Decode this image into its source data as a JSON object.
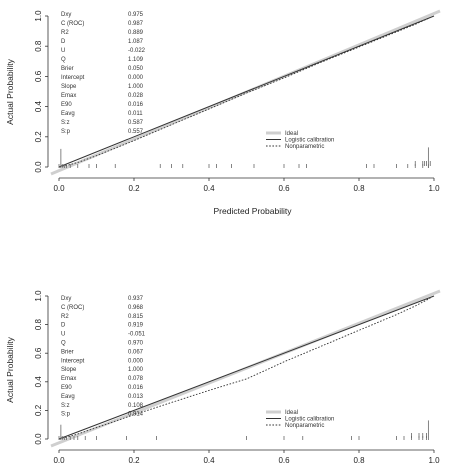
{
  "chart_data": [
    {
      "type": "line",
      "title": "",
      "xlabel": "Predicted Probability",
      "ylabel": "Actual Probability",
      "xlim": [
        0,
        1
      ],
      "ylim": [
        0,
        1
      ],
      "x_ticks": [
        "0.0",
        "0.2",
        "0.4",
        "0.6",
        "0.8",
        "1.0"
      ],
      "y_ticks": [
        "0.0",
        "0.2",
        "0.4",
        "0.6",
        "0.8",
        "1.0"
      ],
      "stats": [
        {
          "label": "Dxy",
          "value": "0.975"
        },
        {
          "label": "C (ROC)",
          "value": "0.987"
        },
        {
          "label": "R2",
          "value": "0.889"
        },
        {
          "label": "D",
          "value": "1.087"
        },
        {
          "label": "U",
          "value": "-0.022"
        },
        {
          "label": "Q",
          "value": "1.109"
        },
        {
          "label": "Brier",
          "value": "0.050"
        },
        {
          "label": "Intercept",
          "value": "0.000"
        },
        {
          "label": "Slope",
          "value": "1.000"
        },
        {
          "label": "Emax",
          "value": "0.028"
        },
        {
          "label": "E90",
          "value": "0.016"
        },
        {
          "label": "Eavg",
          "value": "0.011"
        },
        {
          "label": "S:z",
          "value": "0.587"
        },
        {
          "label": "S:p",
          "value": "0.557"
        }
      ],
      "legend": {
        "position": "right",
        "entries": [
          "Ideal",
          "Logistic calibration",
          "Nonparametric"
        ]
      },
      "series": [
        {
          "name": "Ideal",
          "x": [
            0,
            1
          ],
          "y": [
            0,
            1
          ]
        },
        {
          "name": "Logistic calibration",
          "x": [
            0,
            1
          ],
          "y": [
            0,
            1
          ]
        },
        {
          "name": "Nonparametric",
          "x": [
            0.0,
            0.02,
            0.05,
            0.1,
            0.2,
            0.3,
            0.4,
            0.5,
            0.6,
            0.7,
            0.8,
            0.9,
            0.95,
            0.99
          ],
          "y": [
            0.0,
            0.01,
            0.03,
            0.075,
            0.175,
            0.28,
            0.385,
            0.49,
            0.59,
            0.695,
            0.795,
            0.895,
            0.945,
            0.99
          ]
        }
      ],
      "rug_bottom": [
        0.0,
        0.005,
        0.01,
        0.015,
        0.02,
        0.03,
        0.05,
        0.08,
        0.1,
        0.15,
        0.27,
        0.3,
        0.33,
        0.4,
        0.42,
        0.46,
        0.52,
        0.6,
        0.64,
        0.66,
        0.82,
        0.84,
        0.9,
        0.93,
        0.95,
        0.97,
        0.985
      ],
      "rug_top": [
        0.95,
        0.97,
        0.975,
        0.98,
        0.99
      ],
      "spike_left": 0.12,
      "spike_right": 0.13
    },
    {
      "type": "line",
      "title": "",
      "xlabel": "",
      "ylabel": "Actual Probability",
      "xlim": [
        0,
        1
      ],
      "ylim": [
        0,
        1
      ],
      "x_ticks": [
        "0.0",
        "0.2",
        "0.4",
        "0.6",
        "0.8",
        "1.0"
      ],
      "y_ticks": [
        "0.0",
        "0.2",
        "0.4",
        "0.6",
        "0.8",
        "1.0"
      ],
      "stats": [
        {
          "label": "Dxy",
          "value": "0.937"
        },
        {
          "label": "C (ROC)",
          "value": "0.968"
        },
        {
          "label": "R2",
          "value": "0.815"
        },
        {
          "label": "D",
          "value": "0.919"
        },
        {
          "label": "U",
          "value": "-0.051"
        },
        {
          "label": "Q",
          "value": "0.970"
        },
        {
          "label": "Brier",
          "value": "0.067"
        },
        {
          "label": "Intercept",
          "value": "0.000"
        },
        {
          "label": "Slope",
          "value": "1.000"
        },
        {
          "label": "Emax",
          "value": "0.078"
        },
        {
          "label": "E90",
          "value": "0.016"
        },
        {
          "label": "Eavg",
          "value": "0.013"
        },
        {
          "label": "S:z",
          "value": "0.108"
        },
        {
          "label": "S:p",
          "value": "0.914"
        }
      ],
      "legend": {
        "position": "right",
        "entries": [
          "Ideal",
          "Logistic calibration",
          "Nonparametric"
        ]
      },
      "series": [
        {
          "name": "Ideal",
          "x": [
            0,
            1
          ],
          "y": [
            0,
            1
          ]
        },
        {
          "name": "Logistic calibration",
          "x": [
            0,
            1
          ],
          "y": [
            0,
            1
          ]
        },
        {
          "name": "Nonparametric",
          "x": [
            0.0,
            0.02,
            0.05,
            0.1,
            0.2,
            0.3,
            0.4,
            0.5,
            0.55,
            0.6,
            0.7,
            0.8,
            0.9,
            0.95,
            0.99
          ],
          "y": [
            0.0,
            0.012,
            0.035,
            0.08,
            0.17,
            0.255,
            0.34,
            0.42,
            0.48,
            0.54,
            0.65,
            0.76,
            0.87,
            0.93,
            0.985
          ]
        }
      ],
      "rug_bottom": [
        0.0,
        0.005,
        0.01,
        0.015,
        0.02,
        0.03,
        0.04,
        0.05,
        0.07,
        0.1,
        0.18,
        0.26,
        0.5,
        0.6,
        0.65,
        0.78,
        0.8,
        0.9,
        0.92,
        0.94,
        0.96,
        0.97,
        0.98
      ],
      "rug_top": [
        0.94,
        0.96,
        0.97,
        0.98
      ],
      "spike_left": 0.1,
      "spike_right": 0.13
    }
  ]
}
